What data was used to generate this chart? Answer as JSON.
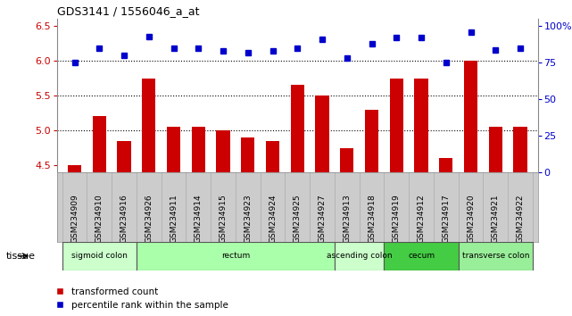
{
  "title": "GDS3141 / 1556046_a_at",
  "samples": [
    "GSM234909",
    "GSM234910",
    "GSM234916",
    "GSM234926",
    "GSM234911",
    "GSM234914",
    "GSM234915",
    "GSM234923",
    "GSM234924",
    "GSM234925",
    "GSM234927",
    "GSM234913",
    "GSM234918",
    "GSM234919",
    "GSM234912",
    "GSM234917",
    "GSM234920",
    "GSM234921",
    "GSM234922"
  ],
  "bar_values": [
    4.5,
    5.2,
    4.85,
    5.75,
    5.05,
    5.05,
    5.0,
    4.9,
    4.85,
    5.65,
    5.5,
    4.75,
    5.3,
    5.75,
    5.75,
    4.6,
    6.0,
    5.05,
    5.05
  ],
  "dot_values": [
    75,
    85,
    80,
    93,
    85,
    85,
    83,
    82,
    83,
    85,
    91,
    78,
    88,
    92,
    92,
    75,
    96,
    84,
    85
  ],
  "bar_color": "#cc0000",
  "dot_color": "#0000cc",
  "ylim_left": [
    4.4,
    6.6
  ],
  "ylim_right": [
    0,
    105
  ],
  "yticks_left": [
    4.5,
    5.0,
    5.5,
    6.0,
    6.5
  ],
  "yticks_right": [
    0,
    25,
    50,
    75,
    100
  ],
  "ytick_labels_right": [
    "0",
    "25",
    "50",
    "75",
    "100%"
  ],
  "hlines": [
    5.0,
    5.5,
    6.0
  ],
  "tissue_groups": [
    {
      "label": "sigmoid colon",
      "start": 0,
      "end": 3,
      "color": "#ccffcc"
    },
    {
      "label": "rectum",
      "start": 3,
      "end": 11,
      "color": "#aaffaa"
    },
    {
      "label": "ascending colon",
      "start": 11,
      "end": 13,
      "color": "#ccffcc"
    },
    {
      "label": "cecum",
      "start": 13,
      "end": 16,
      "color": "#44cc44"
    },
    {
      "label": "transverse colon",
      "start": 16,
      "end": 19,
      "color": "#99ee99"
    }
  ],
  "tissue_label": "tissue",
  "legend_bar_label": "transformed count",
  "legend_dot_label": "percentile rank within the sample",
  "label_bg_color": "#cccccc",
  "plot_bg": "#ffffff"
}
